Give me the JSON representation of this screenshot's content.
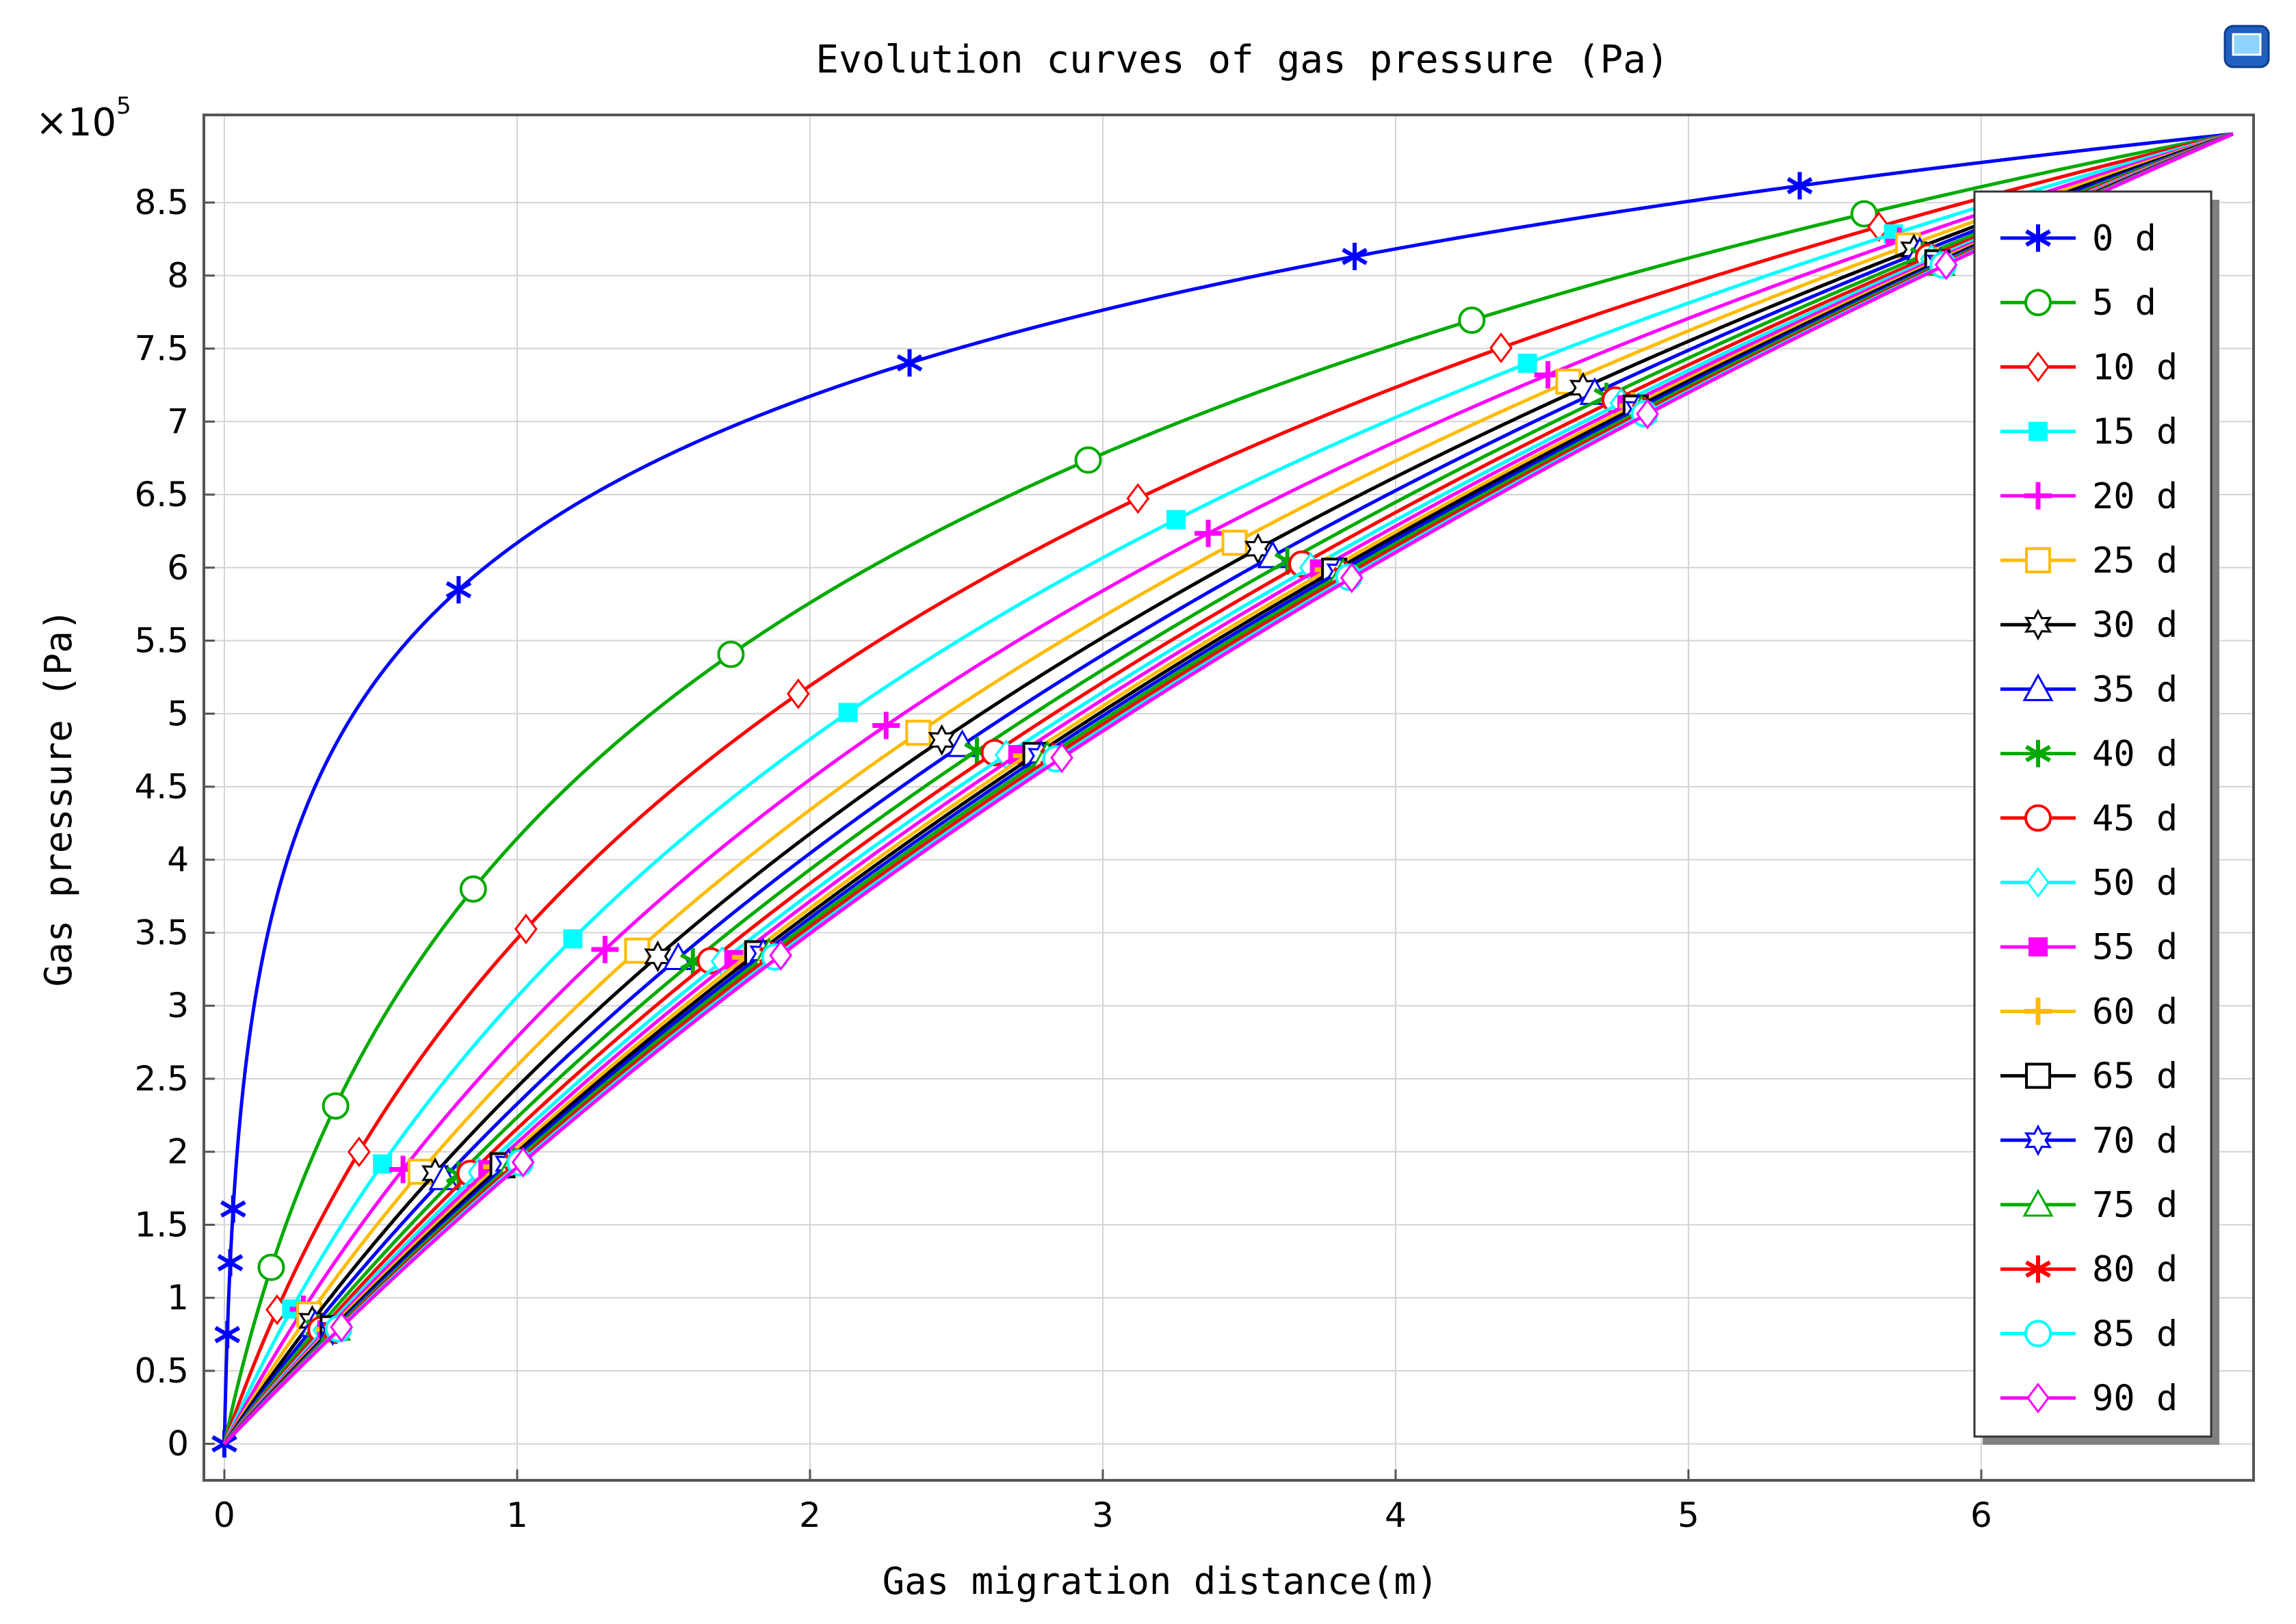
{
  "chart_data": {
    "type": "line",
    "title": "Evolution curves of gas pressure (Pa)",
    "xlabel": "Gas migration distance(m)",
    "ylabel": "Gas pressure (Pa)",
    "y_multiplier_base": "×10",
    "y_multiplier_exp": "5",
    "xlim": [
      -0.07,
      6.93
    ],
    "ylim": [
      -0.25,
      9.1
    ],
    "x_ticks": [
      0,
      1,
      2,
      3,
      4,
      5,
      6
    ],
    "x_tick_labels": [
      "0",
      "1",
      "2",
      "3",
      "4",
      "5",
      "6"
    ],
    "y_ticks": [
      0,
      0.5,
      1,
      1.5,
      2,
      2.5,
      3,
      3.5,
      4,
      4.5,
      5,
      5.5,
      6,
      6.5,
      7,
      7.5,
      8,
      8.5
    ],
    "y_tick_labels": [
      "0",
      "0.5",
      "1",
      "1.5",
      "2",
      "2.5",
      "3",
      "3.5",
      "4",
      "4.5",
      "5",
      "5.5",
      "6",
      "6.5",
      "7",
      "7.5",
      "8",
      "8.5"
    ],
    "grid": true,
    "legend_position": "right",
    "x_max_distance": 6.86,
    "boundary_pressure": 8.97,
    "series": [
      {
        "name": "0 d",
        "color": "#0000ff",
        "marker": "asterisk",
        "curvature": 0.015,
        "marker_x": [
          0.0,
          0.01,
          0.02,
          0.03,
          0.8,
          2.34,
          3.86,
          5.38
        ]
      },
      {
        "name": "5 d",
        "color": "#00aa00",
        "marker": "circle",
        "curvature": 0.3,
        "marker_x": [
          0.16,
          0.38,
          0.85,
          1.73,
          2.95,
          4.26,
          5.6
        ]
      },
      {
        "name": "10 d",
        "color": "#ff0000",
        "marker": "diamond",
        "curvature": 0.62,
        "marker_x": [
          0.18,
          0.46,
          1.03,
          1.96,
          3.12,
          4.36,
          5.65
        ]
      },
      {
        "name": "15 d",
        "color": "#00ffff",
        "marker": "square-filled",
        "curvature": 0.95,
        "marker_x": [
          0.23,
          0.54,
          1.19,
          2.13,
          3.25,
          4.45,
          5.7
        ]
      },
      {
        "name": "20 d",
        "color": "#ff00ff",
        "marker": "plus",
        "curvature": 1.3,
        "marker_x": [
          0.27,
          0.61,
          1.3,
          2.26,
          3.36,
          4.52,
          5.72
        ]
      },
      {
        "name": "25 d",
        "color": "#ffbb00",
        "marker": "square",
        "curvature": 1.65,
        "marker_x": [
          0.29,
          0.67,
          1.41,
          2.37,
          3.45,
          4.59,
          5.75
        ]
      },
      {
        "name": "30 d",
        "color": "#000000",
        "marker": "hexagram",
        "curvature": 2.0,
        "marker_x": [
          0.3,
          0.72,
          1.48,
          2.45,
          3.53,
          4.64,
          5.77
        ]
      },
      {
        "name": "35 d",
        "color": "#0000ff",
        "marker": "triangle",
        "curvature": 2.35,
        "marker_x": [
          0.31,
          0.75,
          1.55,
          2.52,
          3.58,
          4.68,
          5.79
        ]
      },
      {
        "name": "40 d",
        "color": "#00aa00",
        "marker": "asterisk",
        "curvature": 2.7,
        "marker_x": [
          0.32,
          0.8,
          1.6,
          2.57,
          3.63,
          4.72,
          5.8
        ]
      },
      {
        "name": "45 d",
        "color": "#ff0000",
        "marker": "circle",
        "curvature": 3.05,
        "marker_x": [
          0.33,
          0.84,
          1.66,
          2.63,
          3.68,
          4.75,
          5.82
        ]
      },
      {
        "name": "50 d",
        "color": "#00ffff",
        "marker": "diamond",
        "curvature": 3.35,
        "marker_x": [
          0.34,
          0.87,
          1.7,
          2.67,
          3.71,
          4.77,
          5.83
        ]
      },
      {
        "name": "55 d",
        "color": "#ff00ff",
        "marker": "square-filled",
        "curvature": 3.6,
        "marker_x": [
          0.35,
          0.9,
          1.74,
          2.71,
          3.74,
          4.79,
          5.84
        ]
      },
      {
        "name": "60 d",
        "color": "#ffbb00",
        "marker": "plus",
        "curvature": 3.85,
        "marker_x": [
          0.36,
          0.93,
          1.78,
          2.74,
          3.77,
          4.81,
          5.85
        ]
      },
      {
        "name": "65 d",
        "color": "#000000",
        "marker": "square",
        "curvature": 4.05,
        "marker_x": [
          0.37,
          0.95,
          1.82,
          2.77,
          3.79,
          4.82,
          5.85
        ]
      },
      {
        "name": "70 d",
        "color": "#0000ff",
        "marker": "hexagram",
        "curvature": 4.25,
        "marker_x": [
          0.37,
          0.97,
          1.84,
          2.79,
          3.81,
          4.83,
          5.86
        ]
      },
      {
        "name": "75 d",
        "color": "#00aa00",
        "marker": "triangle",
        "curvature": 4.45,
        "marker_x": [
          0.38,
          0.99,
          1.86,
          2.81,
          3.82,
          4.84,
          5.86
        ]
      },
      {
        "name": "80 d",
        "color": "#ff0000",
        "marker": "asterisk",
        "curvature": 4.65,
        "marker_x": [
          0.38,
          1.0,
          1.87,
          2.83,
          3.83,
          4.85,
          5.87
        ]
      },
      {
        "name": "85 d",
        "color": "#00ffff",
        "marker": "circle",
        "curvature": 4.85,
        "marker_x": [
          0.39,
          1.01,
          1.88,
          2.84,
          3.84,
          4.85,
          5.87
        ]
      },
      {
        "name": "90 d",
        "color": "#ff00ff",
        "marker": "diamond",
        "curvature": 5.0,
        "marker_x": [
          0.4,
          1.02,
          1.9,
          2.86,
          3.85,
          4.86,
          5.88
        ]
      }
    ]
  }
}
